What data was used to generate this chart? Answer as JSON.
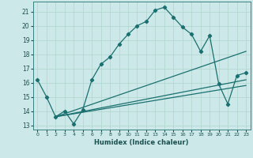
{
  "xlabel": "Humidex (Indice chaleur)",
  "bg_color": "#cde8e8",
  "grid_color": "#b0d4cc",
  "line_color": "#1a7070",
  "xlim": [
    -0.5,
    23.5
  ],
  "ylim": [
    12.7,
    21.7
  ],
  "yticks": [
    13,
    14,
    15,
    16,
    17,
    18,
    19,
    20,
    21
  ],
  "xticks": [
    0,
    1,
    2,
    3,
    4,
    5,
    6,
    7,
    8,
    9,
    10,
    11,
    12,
    13,
    14,
    15,
    16,
    17,
    18,
    19,
    20,
    21,
    22,
    23
  ],
  "curve1_x": [
    0,
    1,
    2,
    3,
    4,
    5,
    6,
    7,
    8,
    9,
    10,
    11,
    12,
    13,
    14,
    15,
    16,
    17,
    18,
    19,
    20,
    21,
    22,
    23
  ],
  "curve1_y": [
    16.2,
    15.0,
    13.6,
    14.0,
    13.1,
    14.1,
    16.2,
    17.3,
    17.8,
    18.7,
    19.4,
    20.0,
    20.3,
    21.1,
    21.3,
    20.6,
    19.9,
    19.4,
    18.2,
    19.3,
    15.9,
    14.5,
    16.5,
    16.7
  ],
  "curve2_x": [
    2,
    23
  ],
  "curve2_y": [
    13.6,
    15.8
  ],
  "curve3_x": [
    2,
    23
  ],
  "curve3_y": [
    13.6,
    16.2
  ],
  "curve4_x": [
    2,
    23
  ],
  "curve4_y": [
    13.6,
    18.2
  ]
}
